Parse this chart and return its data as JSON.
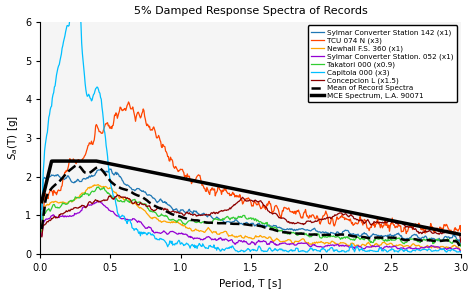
{
  "title": "5% Damped Response Spectra of Records",
  "xlabel": "Period, T [s]",
  "ylabel": "S_a(T) [g]",
  "xlim": [
    0.0,
    3.0
  ],
  "ylim": [
    0.0,
    6.0
  ],
  "xticks": [
    0.0,
    0.5,
    1.0,
    1.5,
    2.0,
    2.5,
    3.0
  ],
  "yticks": [
    0,
    1,
    2,
    3,
    4,
    5,
    6
  ],
  "colors": {
    "sylmar142": "#1f77b4",
    "tcu074": "#ff4500",
    "newhall": "#ffa500",
    "sylmar052": "#9400d3",
    "takatori": "#32cd32",
    "capitola": "#00bfff",
    "concepcion": "#8b0000"
  },
  "legend": [
    "Sylmar Converter Station 142 (x1)",
    "TCU 074 N (x3)",
    "Newhall F.S. 360 (x1)",
    "Sylmar Converter Station. 052 (x1)",
    "Takatori 000 (x0.9)",
    "Capitola 000 (x3)",
    "Concepcion L (x1.5)",
    "Mean of Record Spectra",
    "MCE Spectrum, L.A. 90071"
  ],
  "bg_color": "#f0f0f0"
}
